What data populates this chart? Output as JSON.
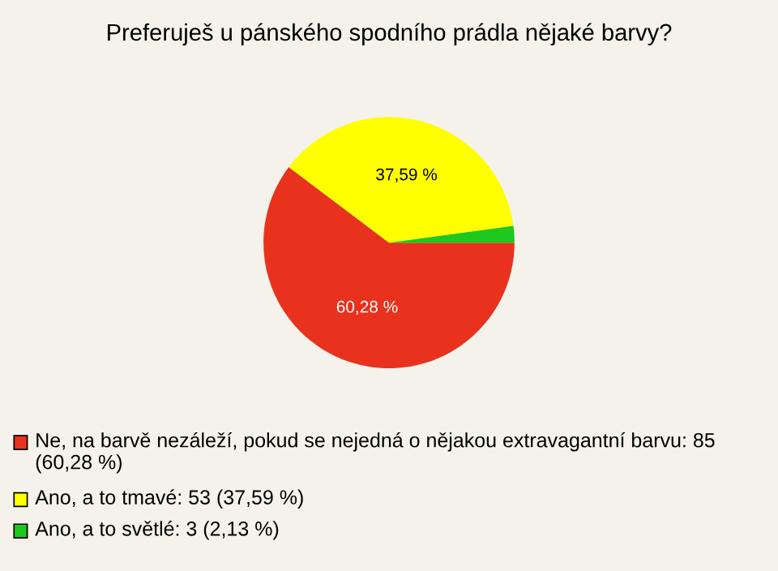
{
  "chart_data": {
    "type": "pie",
    "title": "Preferuješ u pánského spodního prádla nějaké barvy?",
    "categories": [
      "Ne, na barvě nezáleží, pokud se nejedná o nějakou extravagantní barvu: 85 (60,28 %)",
      "Ano, a to tmavé: 53 (37,59 %)",
      "Ano, a to světlé: 3 (2,13 %)"
    ],
    "values": [
      60.28,
      37.59,
      2.13
    ],
    "colors": [
      "#e8321e",
      "#ffff00",
      "#1ec81e"
    ],
    "value_labels": [
      "60,28 %",
      "37,59 %",
      null
    ],
    "legend": "bottom"
  }
}
